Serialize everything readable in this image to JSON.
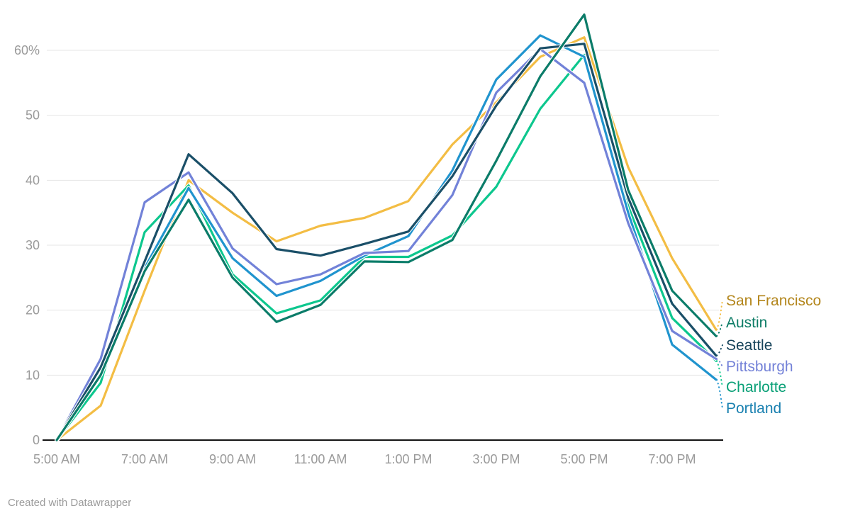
{
  "footer": {
    "credit": "Created with Datawrapper"
  },
  "chart_data": {
    "type": "line",
    "x_categories": [
      "5:00 AM",
      "6:00 AM",
      "7:00 AM",
      "8:00 AM",
      "9:00 AM",
      "10:00 AM",
      "11:00 AM",
      "12:00 PM",
      "1:00 PM",
      "2:00 PM",
      "3:00 PM",
      "4:00 PM",
      "5:00 PM",
      "6:00 PM",
      "7:00 PM",
      "8:00 PM"
    ],
    "x_tick_labels": [
      "5:00 AM",
      "7:00 AM",
      "9:00 AM",
      "11:00 AM",
      "1:00 PM",
      "3:00 PM",
      "5:00 PM",
      "7:00 PM"
    ],
    "x_tick_indices": [
      0,
      2,
      4,
      6,
      8,
      10,
      12,
      14
    ],
    "y_ticks": [
      {
        "value": 0,
        "label": "0"
      },
      {
        "value": 10,
        "label": "10"
      },
      {
        "value": 20,
        "label": "20"
      },
      {
        "value": 30,
        "label": "30"
      },
      {
        "value": 40,
        "label": "40"
      },
      {
        "value": 50,
        "label": "50"
      },
      {
        "value": 60,
        "label": "60%"
      }
    ],
    "ylim": [
      0,
      67
    ],
    "grid": true,
    "legend_position": "right",
    "series": [
      {
        "name": "San Francisco",
        "color": "#f3bd44",
        "label_color": "#b3861c",
        "values": [
          0,
          5.3,
          23,
          40,
          35,
          30.6,
          33,
          34.2,
          36.8,
          45.5,
          52,
          59,
          62,
          42,
          28,
          17
        ]
      },
      {
        "name": "Austin",
        "color": "#0b7c69",
        "label_color": "#0d7c66",
        "values": [
          0,
          10,
          26,
          37,
          25,
          18.2,
          20.8,
          27.5,
          27.4,
          30.8,
          43,
          56,
          65.5,
          38.5,
          23,
          16
        ]
      },
      {
        "name": "Seattle",
        "color": "#1a4f68",
        "label_color": "#17435a",
        "values": [
          0,
          11.2,
          27.5,
          44,
          38,
          29.4,
          28.4,
          30.2,
          32.1,
          40.6,
          51.5,
          60.3,
          61,
          37.3,
          21,
          13
        ]
      },
      {
        "name": "Pittsburgh",
        "color": "#7282d8",
        "label_color": "#7482d8",
        "values": [
          0,
          12.5,
          36.6,
          41.2,
          29.5,
          24,
          25.5,
          28.8,
          29.1,
          37.7,
          53.5,
          60.2,
          55,
          33.4,
          16.8,
          12.5
        ]
      },
      {
        "name": "Charlotte",
        "color": "#0dc78e",
        "label_color": "#0aa077",
        "values": [
          0,
          8.8,
          32,
          39.2,
          25.5,
          19.5,
          21.5,
          28.2,
          28.2,
          31.5,
          39,
          51,
          59.3,
          36,
          18.8,
          12.2
        ]
      },
      {
        "name": "Portland",
        "color": "#2094ce",
        "label_color": "#1980b0",
        "values": [
          0,
          10.5,
          26.5,
          38.8,
          28,
          22.2,
          24.5,
          28.4,
          31.4,
          41.5,
          55.5,
          62.3,
          59,
          35,
          14.7,
          9.3
        ]
      }
    ]
  }
}
